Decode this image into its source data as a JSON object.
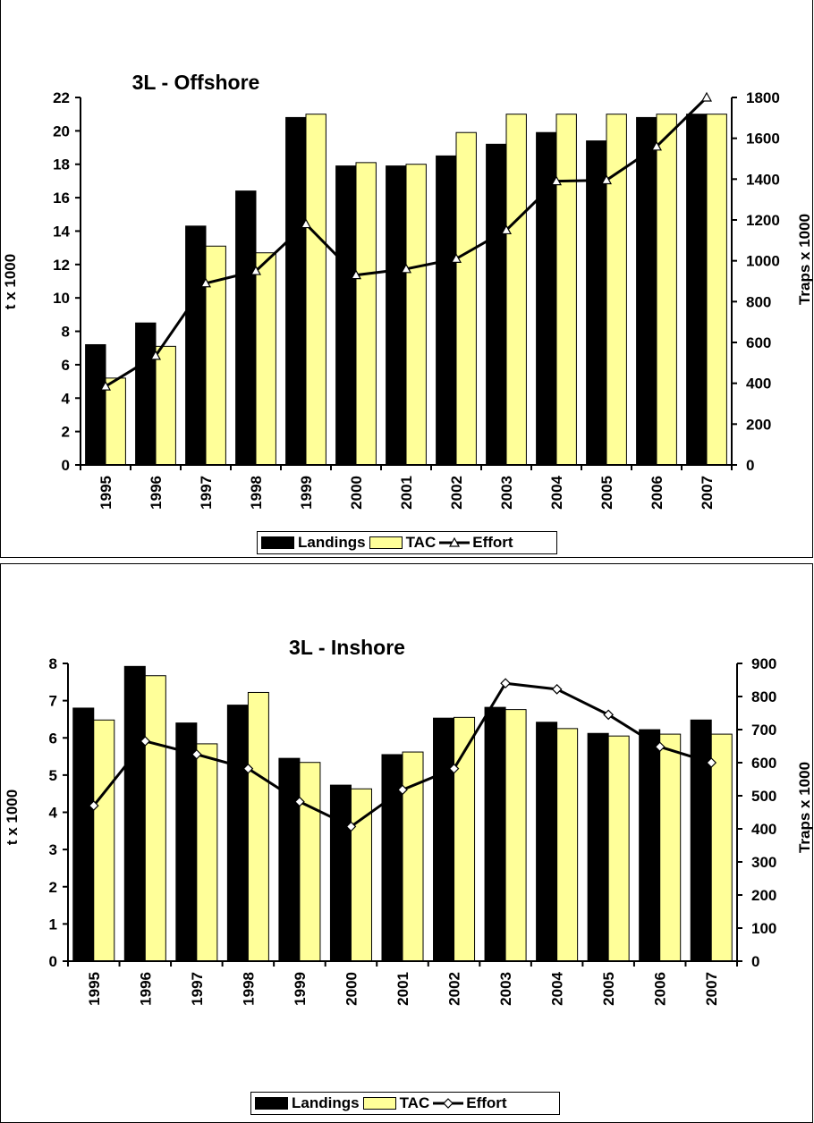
{
  "colors": {
    "landings": "#000000",
    "tac": "#ffff99",
    "effort_line": "#000000"
  },
  "chart_data": [
    {
      "type": "bar",
      "title": "3L - Offshore",
      "xlabel": "",
      "ylabel": "t x 1000",
      "ylabel_right": "Traps x 1000",
      "categories": [
        "1995",
        "1996",
        "1997",
        "1998",
        "1999",
        "2000",
        "2001",
        "2002",
        "2003",
        "2004",
        "2005",
        "2006",
        "2007"
      ],
      "ylim": [
        0,
        22
      ],
      "yticks": [
        0,
        2,
        4,
        6,
        8,
        10,
        12,
        14,
        16,
        18,
        20,
        22
      ],
      "ylim_right": [
        0,
        1800
      ],
      "yticks_right": [
        0,
        200,
        400,
        600,
        800,
        1000,
        1200,
        1400,
        1600,
        1800
      ],
      "series": [
        {
          "name": "Landings",
          "axis": "left",
          "kind": "bar",
          "values": [
            7.2,
            8.5,
            14.3,
            16.4,
            20.8,
            17.9,
            17.9,
            18.5,
            19.2,
            19.9,
            19.4,
            20.8,
            21.0
          ]
        },
        {
          "name": "TAC",
          "axis": "left",
          "kind": "bar",
          "values": [
            5.2,
            7.1,
            13.1,
            12.7,
            21.0,
            18.1,
            18.0,
            19.9,
            21.0,
            21.0,
            21.0,
            21.0,
            21.0
          ]
        },
        {
          "name": "Effort",
          "axis": "right",
          "kind": "line",
          "marker": "triangle",
          "values": [
            385,
            535,
            890,
            950,
            1180,
            930,
            960,
            1010,
            1150,
            1390,
            1395,
            1560,
            1800
          ]
        }
      ],
      "legend": {
        "entries": [
          "Landings",
          "TAC",
          "Effort"
        ],
        "position": "bottom"
      },
      "grid": false
    },
    {
      "type": "bar",
      "title": "3L - Inshore",
      "xlabel": "",
      "ylabel": "t x 1000",
      "ylabel_right": "Traps x 1000",
      "categories": [
        "1995",
        "1996",
        "1997",
        "1998",
        "1999",
        "2000",
        "2001",
        "2002",
        "2003",
        "2004",
        "2005",
        "2006",
        "2007"
      ],
      "ylim": [
        0,
        8
      ],
      "yticks": [
        0,
        1,
        2,
        3,
        4,
        5,
        6,
        7,
        8
      ],
      "ylim_right": [
        0,
        900
      ],
      "yticks_right": [
        0,
        100,
        200,
        300,
        400,
        500,
        600,
        700,
        800,
        900
      ],
      "series": [
        {
          "name": "Landings",
          "axis": "left",
          "kind": "bar",
          "values": [
            6.8,
            7.92,
            6.4,
            6.88,
            5.45,
            4.73,
            5.55,
            6.53,
            6.82,
            6.42,
            6.12,
            6.22,
            6.48
          ]
        },
        {
          "name": "TAC",
          "axis": "left",
          "kind": "bar",
          "values": [
            6.48,
            7.67,
            5.84,
            7.22,
            5.34,
            4.63,
            5.62,
            6.55,
            6.76,
            6.25,
            6.05,
            6.1,
            6.1
          ]
        },
        {
          "name": "Effort",
          "axis": "right",
          "kind": "line",
          "marker": "diamond",
          "values": [
            470,
            665,
            625,
            582,
            482,
            407,
            518,
            582,
            840,
            822,
            745,
            648,
            600
          ]
        }
      ],
      "legend": {
        "entries": [
          "Landings",
          "TAC",
          "Effort"
        ],
        "position": "bottom"
      },
      "grid": false
    }
  ]
}
